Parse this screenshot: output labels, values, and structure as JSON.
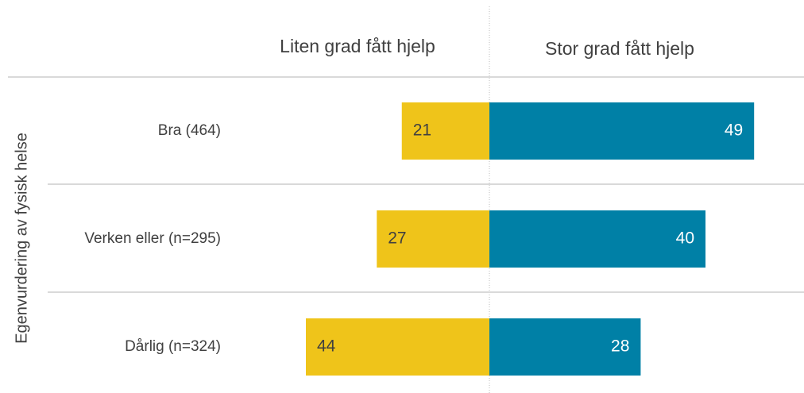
{
  "chart_data": {
    "type": "diverging-bar",
    "y_label": "Egenvurdering av fysisk helse",
    "categories": [
      "Bra (464)",
      "Verken eller (n=295)",
      "Dårlig (n=324)"
    ],
    "series": [
      {
        "name": "Liten grad fått hjelp",
        "color": "#efc41a",
        "values": [
          21,
          27,
          44
        ]
      },
      {
        "name": "Stor grad fått hjelp",
        "color": "#0080a6",
        "values": [
          49,
          40,
          28
        ]
      }
    ]
  }
}
